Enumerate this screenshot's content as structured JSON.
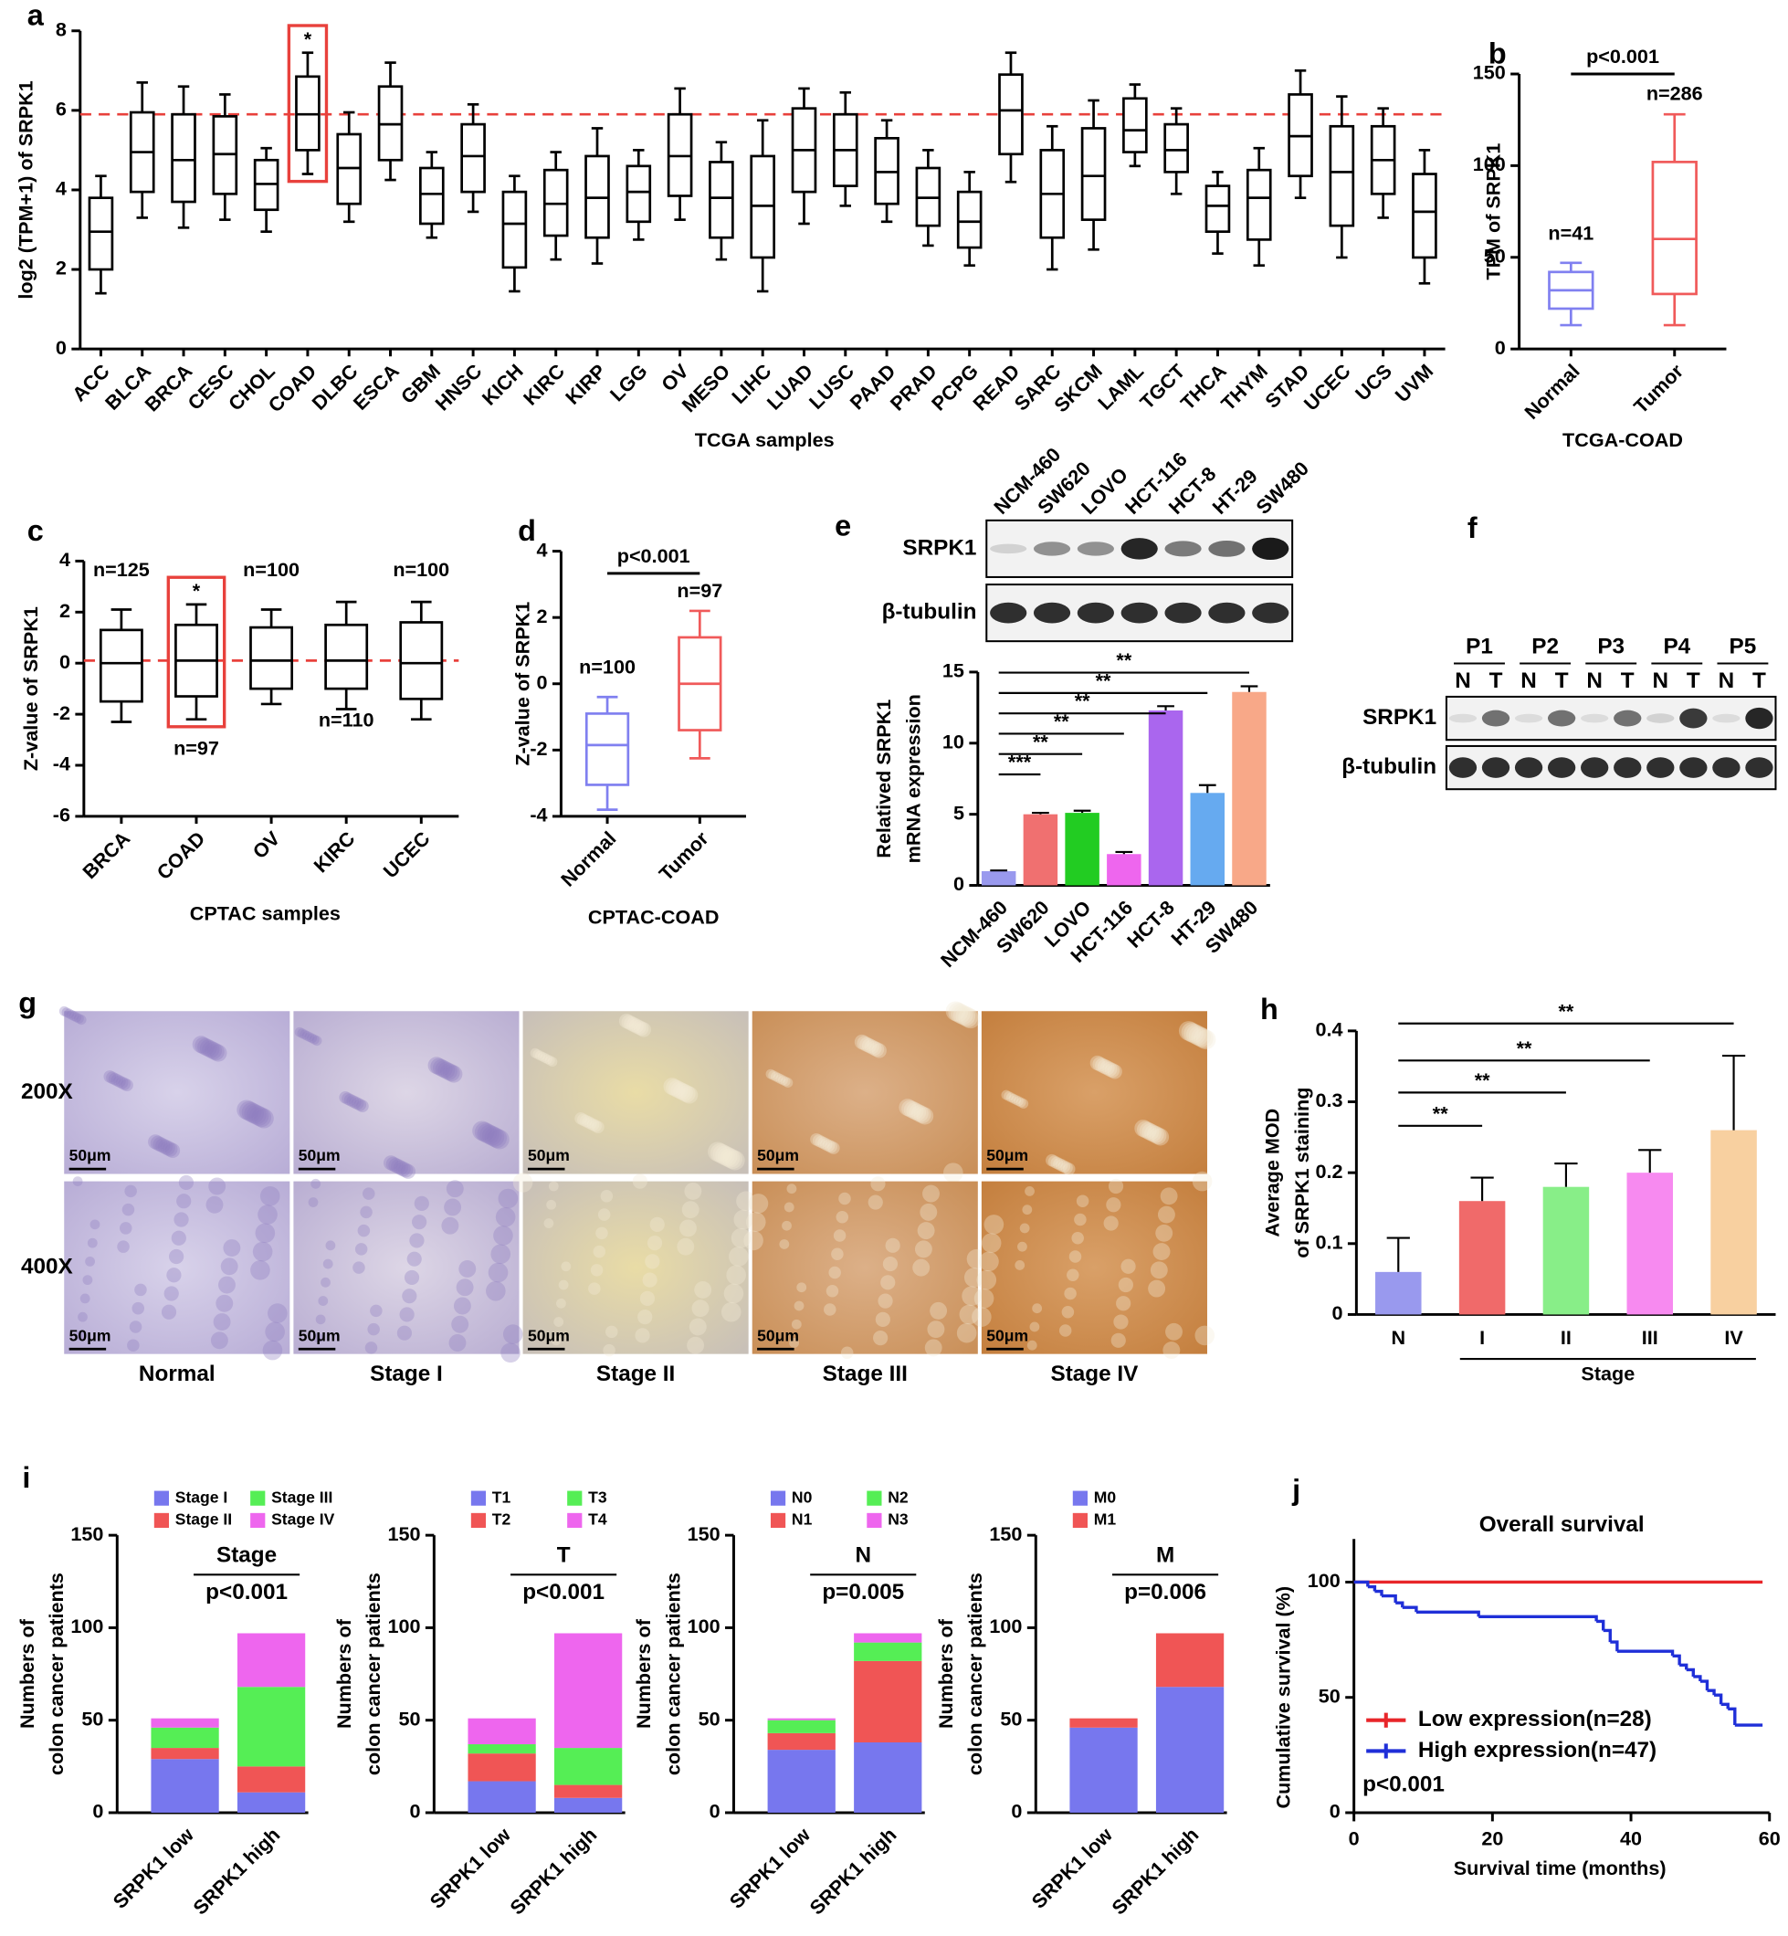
{
  "chart_data": [
    {
      "type": "box",
      "panel": "a",
      "ylabel": "log2 (TPM+1) of SRPK1",
      "xlabel": "TCGA samples",
      "categories": [
        "ACC",
        "BLCA",
        "BRCA",
        "CESC",
        "CHOL",
        "COAD",
        "DLBC",
        "ESCA",
        "GBM",
        "HNSC",
        "KICH",
        "KIRC",
        "KIRP",
        "LGG",
        "OV",
        "MESO",
        "LIHC",
        "LUAD",
        "LUSC",
        "PAAD",
        "PRAD",
        "PCPG",
        "READ",
        "SARC",
        "SKCM",
        "LAML",
        "TGCT",
        "THCA",
        "THYM",
        "STAD",
        "UCEC",
        "UCS",
        "UVM"
      ],
      "boxes": [
        [
          1.4,
          2.0,
          2.95,
          3.8,
          4.35
        ],
        [
          3.3,
          3.95,
          4.95,
          5.95,
          6.7
        ],
        [
          3.05,
          3.7,
          4.75,
          5.9,
          6.6
        ],
        [
          3.25,
          3.9,
          4.9,
          5.85,
          6.4
        ],
        [
          2.95,
          3.5,
          4.15,
          4.75,
          5.05
        ],
        [
          4.4,
          5.0,
          5.9,
          6.85,
          7.45
        ],
        [
          3.2,
          3.65,
          4.55,
          5.4,
          5.95
        ],
        [
          4.25,
          4.75,
          5.65,
          6.6,
          7.2
        ],
        [
          2.8,
          3.15,
          3.9,
          4.55,
          4.95
        ],
        [
          3.45,
          3.95,
          4.85,
          5.65,
          6.15
        ],
        [
          1.45,
          2.05,
          3.15,
          3.95,
          4.35
        ],
        [
          2.25,
          2.85,
          3.65,
          4.5,
          4.95
        ],
        [
          2.15,
          2.8,
          3.8,
          4.85,
          5.55
        ],
        [
          2.75,
          3.2,
          3.95,
          4.6,
          5.0
        ],
        [
          3.25,
          3.85,
          4.85,
          5.9,
          6.55
        ],
        [
          2.25,
          2.8,
          3.8,
          4.7,
          5.2
        ],
        [
          1.45,
          2.3,
          3.6,
          4.85,
          5.75
        ],
        [
          3.15,
          3.95,
          5.0,
          6.05,
          6.55
        ],
        [
          3.6,
          4.1,
          5.0,
          5.9,
          6.45
        ],
        [
          3.2,
          3.65,
          4.45,
          5.3,
          5.75
        ],
        [
          2.6,
          3.1,
          3.8,
          4.55,
          5.0
        ],
        [
          2.1,
          2.55,
          3.2,
          3.95,
          4.45
        ],
        [
          4.2,
          4.9,
          6.0,
          6.9,
          7.45
        ],
        [
          2.0,
          2.8,
          3.9,
          5.0,
          5.6
        ],
        [
          2.5,
          3.25,
          4.35,
          5.55,
          6.25
        ],
        [
          4.6,
          4.95,
          5.5,
          6.3,
          6.65
        ],
        [
          3.9,
          4.45,
          5.0,
          5.65,
          6.05
        ],
        [
          2.4,
          2.95,
          3.6,
          4.1,
          4.45
        ],
        [
          2.1,
          2.75,
          3.8,
          4.5,
          5.05
        ],
        [
          3.8,
          4.35,
          5.35,
          6.4,
          7.0
        ],
        [
          2.3,
          3.1,
          4.45,
          5.6,
          6.35
        ],
        [
          3.3,
          3.9,
          4.75,
          5.6,
          6.05
        ],
        [
          1.65,
          2.3,
          3.45,
          4.4,
          5.0
        ]
      ],
      "color": "#000000",
      "ylim": [
        0,
        8
      ],
      "yticks": [
        0,
        2,
        4,
        6,
        8
      ],
      "hline": 5.9,
      "hline_color": "#e8413c",
      "highlight_color": "#e8413c",
      "annotations": [
        "*"
      ]
    },
    {
      "type": "box",
      "panel": "b",
      "ylabel": "TPM of SRPK1",
      "xlabel": "TCGA-COAD",
      "categories": [
        "Normal",
        "Tumor"
      ],
      "boxes": [
        [
          13,
          22,
          32,
          42,
          47
        ],
        [
          13,
          30,
          60,
          102,
          128
        ]
      ],
      "colors": [
        "#8080f0",
        "#f05a5a"
      ],
      "n_labels": [
        "n=41",
        "n=286"
      ],
      "p_label": "p<0.001",
      "ylim": [
        0,
        150
      ],
      "yticks": [
        0,
        50,
        100,
        150
      ]
    },
    {
      "type": "box",
      "panel": "c",
      "ylabel": "Z-value of SRPK1",
      "xlabel": "CPTAC samples",
      "categories": [
        "BRCA",
        "COAD",
        "OV",
        "KIRC",
        "UCEC"
      ],
      "boxes": [
        [
          -2.3,
          -1.5,
          0,
          1.3,
          2.1
        ],
        [
          -2.2,
          -1.3,
          0.1,
          1.5,
          2.3
        ],
        [
          -1.6,
          -1.0,
          0.1,
          1.4,
          2.1
        ],
        [
          -1.8,
          -1.0,
          0.1,
          1.5,
          2.4
        ],
        [
          -2.2,
          -1.4,
          0,
          1.6,
          2.4
        ]
      ],
      "color": "#000000",
      "n_labels": [
        "n=125",
        "n=97",
        "n=100",
        "n=110",
        "n=100"
      ],
      "ylim": [
        -6,
        4
      ],
      "yticks": [
        -6,
        -4,
        -2,
        0,
        2,
        4
      ],
      "hline": 0.1,
      "hline_color": "#e8413c",
      "highlight_color": "#e8413c",
      "annotations": [
        "*"
      ]
    },
    {
      "type": "box",
      "panel": "d",
      "ylabel": "Z-value of SRPK1",
      "xlabel": "CPTAC-COAD",
      "categories": [
        "Normal",
        "Tumor"
      ],
      "boxes": [
        [
          -3.8,
          -3.05,
          -1.85,
          -0.9,
          -0.4
        ],
        [
          -2.25,
          -1.4,
          0,
          1.4,
          2.2
        ]
      ],
      "colors": [
        "#8080f0",
        "#f05a5a"
      ],
      "n_labels": [
        "n=100",
        "n=97"
      ],
      "p_label": "p<0.001",
      "ylim": [
        -4,
        4
      ],
      "yticks": [
        -4,
        -2,
        0,
        2,
        4
      ]
    },
    {
      "type": "blot",
      "panel": "e",
      "lanes": [
        "NCM-460",
        "SW620",
        "LOVO",
        "HCT-116",
        "HCT-8",
        "HT-29",
        "SW480"
      ],
      "rows": [
        "SRPK1",
        "β-tubulin"
      ]
    },
    {
      "type": "bar",
      "ylabel": [
        "Relatived SRPK1",
        "mRNA expression"
      ],
      "categories": [
        "NCM-460",
        "SW620",
        "LOVO",
        "HCT-116",
        "HCT-8",
        "HT-29",
        "SW480"
      ],
      "values": [
        1,
        5.0,
        5.1,
        2.2,
        12.3,
        6.5,
        13.6
      ],
      "errors": [
        0.05,
        0.1,
        0.15,
        0.15,
        0.3,
        0.55,
        0.4
      ],
      "colors": [
        "#9999ee",
        "#f07070",
        "#22cc22",
        "#ee66ee",
        "#aa66ee",
        "#66aaf0",
        "#f8a888"
      ],
      "ylim": [
        0,
        15
      ],
      "yticks": [
        0,
        5,
        10,
        15
      ],
      "significance": [
        "***",
        "**",
        "**",
        "**",
        "**",
        "**"
      ]
    },
    {
      "type": "blot",
      "panel": "f",
      "groups": [
        "P1",
        "P2",
        "P3",
        "P4",
        "P5"
      ],
      "lanes": [
        "N",
        "T",
        "N",
        "T",
        "N",
        "T",
        "N",
        "T",
        "N",
        "T"
      ],
      "rows": [
        "SRPK1",
        "β-tubulin"
      ]
    },
    {
      "type": "image",
      "panel": "g",
      "rows": [
        "200X",
        "400X"
      ],
      "columns": [
        "Normal",
        "Stage I",
        "Stage II",
        "Stage III",
        "Stage IV"
      ],
      "scale_bars": [
        [
          "50μm",
          "50μm",
          "50μm",
          "50μm",
          "50μm"
        ],
        [
          "50μm",
          "50μm",
          "50μm",
          "50μm",
          "50μm"
        ]
      ]
    },
    {
      "type": "bar",
      "panel": "h",
      "ylabel": [
        "Average MOD",
        "of SRPK1 staining"
      ],
      "categories": [
        "N",
        "I",
        "II",
        "III",
        "IV"
      ],
      "values": [
        0.06,
        0.16,
        0.18,
        0.2,
        0.26
      ],
      "errors": [
        0.048,
        0.033,
        0.033,
        0.032,
        0.105
      ],
      "colors": [
        "#9999ee",
        "#f06a6a",
        "#88ee88",
        "#f78af0",
        "#f8d0a0"
      ],
      "ylim": [
        0,
        0.4
      ],
      "yticks": [
        0,
        0.1,
        0.2,
        0.3,
        0.4
      ],
      "significance": [
        "**",
        "**",
        "**",
        "**"
      ],
      "group_label": "Stage"
    },
    {
      "type": "stacked_bar",
      "panel": "i",
      "title": "Stage",
      "p_label": "p<0.001",
      "ylabel": [
        "Numbers of",
        "colon cancer patients"
      ],
      "categories": [
        "SRPK1 low",
        "SRPK1 high"
      ],
      "ylim": [
        0,
        150
      ],
      "yticks": [
        0,
        50,
        100,
        150
      ],
      "series": [
        {
          "name": "Stage I",
          "color": "#7777ee",
          "values": [
            29,
            11
          ]
        },
        {
          "name": "Stage II",
          "color": "#f05555",
          "values": [
            6,
            14
          ]
        },
        {
          "name": "Stage III",
          "color": "#55ee55",
          "values": [
            11,
            43
          ]
        },
        {
          "name": "Stage IV",
          "color": "#ee66ee",
          "values": [
            5,
            29
          ]
        }
      ]
    },
    {
      "type": "stacked_bar",
      "title": "T",
      "p_label": "p<0.001",
      "ylabel": [
        "Numbers of",
        "colon cancer patients"
      ],
      "categories": [
        "SRPK1 low",
        "SRPK1 high"
      ],
      "ylim": [
        0,
        150
      ],
      "yticks": [
        0,
        50,
        100,
        150
      ],
      "series": [
        {
          "name": "T1",
          "color": "#7777ee",
          "values": [
            17,
            8
          ]
        },
        {
          "name": "T2",
          "color": "#f05555",
          "values": [
            15,
            7
          ]
        },
        {
          "name": "T3",
          "color": "#55ee55",
          "values": [
            5,
            20
          ]
        },
        {
          "name": "T4",
          "color": "#ee66ee",
          "values": [
            14,
            62
          ]
        }
      ]
    },
    {
      "type": "stacked_bar",
      "title": "N",
      "p_label": "p=0.005",
      "ylabel": [
        "Numbers of",
        "colon cancer patients"
      ],
      "categories": [
        "SRPK1 low",
        "SRPK1 high"
      ],
      "ylim": [
        0,
        150
      ],
      "yticks": [
        0,
        50,
        100,
        150
      ],
      "series": [
        {
          "name": "N0",
          "color": "#7777ee",
          "values": [
            34,
            38
          ]
        },
        {
          "name": "N1",
          "color": "#f05555",
          "values": [
            9,
            44
          ]
        },
        {
          "name": "N2",
          "color": "#55ee55",
          "values": [
            7,
            10
          ]
        },
        {
          "name": "N3",
          "color": "#ee66ee",
          "values": [
            1,
            5
          ]
        }
      ]
    },
    {
      "type": "stacked_bar",
      "title": "M",
      "p_label": "p=0.006",
      "ylabel": [
        "Numbers of",
        "colon cancer patients"
      ],
      "categories": [
        "SRPK1 low",
        "SRPK1 high"
      ],
      "ylim": [
        0,
        150
      ],
      "yticks": [
        0,
        50,
        100,
        150
      ],
      "series": [
        {
          "name": "M0",
          "color": "#7777ee",
          "values": [
            46,
            68
          ]
        },
        {
          "name": "M1",
          "color": "#f05555",
          "values": [
            5,
            29
          ]
        }
      ]
    },
    {
      "type": "line",
      "panel": "j",
      "title": "Overall survival",
      "xlabel": "Survival time (months)",
      "ylabel": "Cumulative survival (%)",
      "p_label": "p<0.001",
      "xlim": [
        0,
        60
      ],
      "xticks": [
        0,
        20,
        40,
        60
      ],
      "ylim": [
        0,
        100
      ],
      "yticks": [
        0,
        50,
        100
      ],
      "step": true,
      "series": [
        {
          "name": "Low expression(n=28)",
          "color": "#e8262a",
          "x": [
            0,
            59
          ],
          "values": [
            100,
            100
          ]
        },
        {
          "name": "High expression(n=47)",
          "color": "#1f2fd8",
          "x": [
            0,
            2,
            3,
            4,
            6,
            7,
            9,
            18,
            35,
            36,
            37,
            38,
            46,
            47,
            48,
            49,
            50,
            51,
            52,
            53,
            54,
            55,
            59
          ],
          "values": [
            100,
            98,
            96,
            94,
            91,
            89,
            87,
            85,
            83,
            79,
            74,
            70,
            68,
            64,
            62,
            59,
            57,
            53,
            51,
            47,
            45,
            38,
            38
          ]
        }
      ]
    }
  ]
}
